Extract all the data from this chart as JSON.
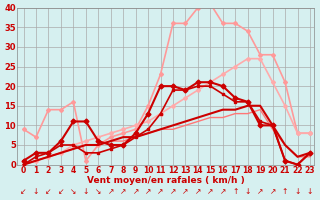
{
  "xlabel": "Vent moyen/en rafales ( km/h )",
  "bg_color": "#d6f0f0",
  "grid_color": "#aaaaaa",
  "xlim": [
    -0.5,
    23.3
  ],
  "ylim": [
    0,
    40
  ],
  "yticks": [
    0,
    5,
    10,
    15,
    20,
    25,
    30,
    35,
    40
  ],
  "xticks": [
    0,
    1,
    2,
    3,
    4,
    5,
    6,
    7,
    8,
    9,
    10,
    11,
    12,
    13,
    14,
    15,
    16,
    17,
    18,
    19,
    20,
    21,
    22,
    23
  ],
  "series": [
    {
      "x": [
        0,
        1,
        2,
        3,
        4,
        5,
        6,
        7,
        8,
        9,
        10,
        11,
        12,
        13,
        14,
        15,
        16,
        17,
        18,
        19,
        20,
        21,
        22,
        23
      ],
      "y": [
        1,
        3,
        3,
        6,
        11,
        11,
        6,
        5,
        5,
        8,
        13,
        20,
        20,
        19,
        21,
        21,
        20,
        17,
        16,
        10,
        10,
        1,
        0,
        3
      ],
      "color": "#cc0000",
      "linewidth": 1.5,
      "marker": "D",
      "markersize": 2.5,
      "zorder": 4,
      "linestyle": "-"
    },
    {
      "x": [
        0,
        1,
        2,
        3,
        4,
        5,
        6,
        7,
        8,
        9,
        10,
        11,
        12,
        13,
        14,
        15,
        16,
        17,
        18,
        19,
        20,
        21,
        22,
        23
      ],
      "y": [
        0,
        2,
        3,
        5,
        5,
        3,
        3,
        4,
        5,
        7,
        9,
        13,
        19,
        19,
        20,
        20,
        18,
        16,
        16,
        11,
        10,
        1,
        0,
        3
      ],
      "color": "#cc0000",
      "linewidth": 1.2,
      "marker": "s",
      "markersize": 2,
      "zorder": 3,
      "linestyle": "-"
    },
    {
      "x": [
        0,
        1,
        2,
        3,
        4,
        5,
        6,
        7,
        8,
        9,
        10,
        11,
        12,
        13,
        14,
        15,
        16,
        17,
        18,
        19,
        20,
        21,
        22,
        23
      ],
      "y": [
        9,
        7,
        14,
        14,
        16,
        1,
        5,
        7,
        8,
        9,
        15,
        23,
        36,
        36,
        40,
        41,
        36,
        36,
        34,
        28,
        28,
        21,
        8,
        8
      ],
      "color": "#ff9999",
      "linewidth": 1.2,
      "marker": "D",
      "markersize": 2,
      "zorder": 2,
      "linestyle": "-"
    },
    {
      "x": [
        0,
        1,
        2,
        3,
        4,
        5,
        6,
        7,
        8,
        9,
        10,
        11,
        12,
        13,
        14,
        15,
        16,
        17,
        18,
        19,
        20,
        21,
        22,
        23
      ],
      "y": [
        0,
        1,
        2,
        3,
        4,
        5,
        5,
        6,
        7,
        7,
        8,
        9,
        10,
        11,
        12,
        13,
        14,
        14,
        15,
        15,
        10,
        5,
        2,
        3
      ],
      "color": "#cc0000",
      "linewidth": 1.5,
      "marker": null,
      "markersize": 0,
      "zorder": 3,
      "linestyle": "-"
    },
    {
      "x": [
        0,
        1,
        2,
        3,
        4,
        5,
        6,
        7,
        8,
        9,
        10,
        11,
        12,
        13,
        14,
        15,
        16,
        17,
        18,
        19,
        20,
        21,
        22,
        23
      ],
      "y": [
        0,
        1,
        2,
        3,
        5,
        6,
        7,
        8,
        9,
        10,
        11,
        13,
        15,
        17,
        19,
        21,
        23,
        25,
        27,
        27,
        21,
        15,
        8,
        8
      ],
      "color": "#ffaaaa",
      "linewidth": 1.2,
      "marker": "D",
      "markersize": 2,
      "zorder": 2,
      "linestyle": "-"
    },
    {
      "x": [
        0,
        1,
        2,
        3,
        4,
        5,
        6,
        7,
        8,
        9,
        10,
        11,
        12,
        13,
        14,
        15,
        16,
        17,
        18,
        19,
        20,
        21,
        22,
        23
      ],
      "y": [
        0,
        1,
        2,
        3,
        4,
        5,
        5,
        6,
        6,
        7,
        8,
        9,
        9,
        10,
        11,
        12,
        12,
        13,
        13,
        14,
        9,
        5,
        2,
        2
      ],
      "color": "#ff7777",
      "linewidth": 1.0,
      "marker": null,
      "markersize": 0,
      "zorder": 2,
      "linestyle": "-"
    }
  ],
  "wind_arrows": [
    "↙",
    "↓",
    "↙",
    "↙",
    "↘",
    "↓",
    "↘",
    "↗",
    "↗",
    "↗",
    "↗",
    "↗",
    "↗",
    "↗",
    "↗",
    "↗",
    "↗",
    "↑",
    "↓",
    "↗",
    "↗",
    "↑",
    "↓",
    "↓"
  ]
}
